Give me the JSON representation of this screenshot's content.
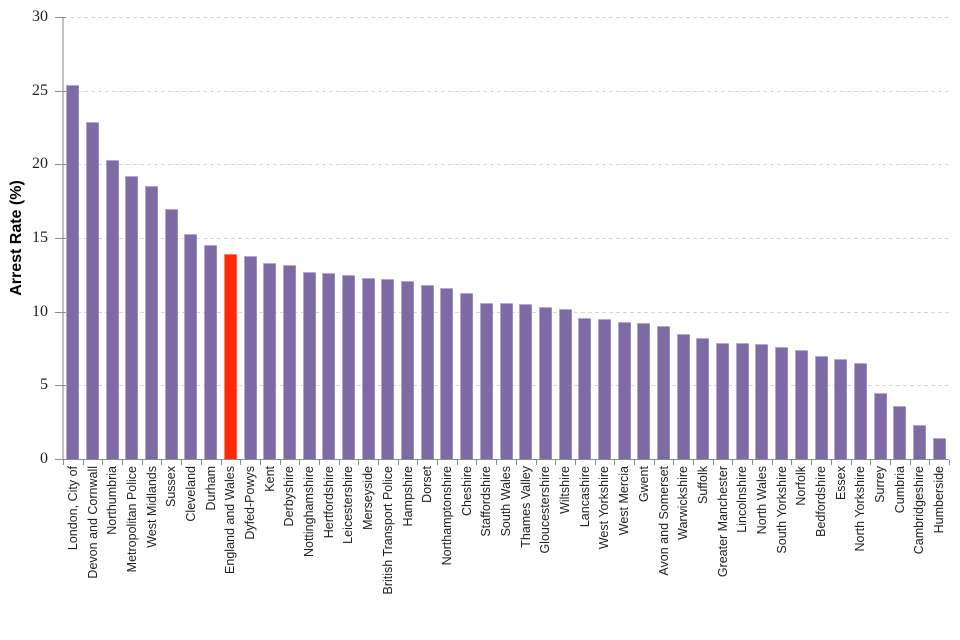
{
  "chart_data": {
    "type": "bar",
    "title": "",
    "ylabel": "Arrest Rate (%)",
    "xlabel": "",
    "ylim": [
      0,
      30
    ],
    "yticks": [
      0,
      5,
      10,
      15,
      20,
      25,
      30
    ],
    "grid": "horizontal-dashed",
    "legend_position": "none",
    "highlight_category": "England and Wales",
    "categories": [
      "London, City of",
      "Devon and Cornwall",
      "Northumbria",
      "Metropolitan Police",
      "West Midlands",
      "Sussex",
      "Cleveland",
      "Durham",
      "England and Wales",
      "Dyfed-Powys",
      "Kent",
      "Derbyshire",
      "Nottinghamshire",
      "Hertfordshire",
      "Leicestershire",
      "Merseyside",
      "British Transport Police",
      "Hampshire",
      "Dorset",
      "Northamptonshire",
      "Cheshire",
      "Staffordshire",
      "South Wales",
      "Thames Valley",
      "Gloucestershire",
      "Wiltshire",
      "Lancashire",
      "West Yorkshire",
      "West Mercia",
      "Gwent",
      "Avon and Somerset",
      "Warwickshire",
      "Suffolk",
      "Greater Manchester",
      "Lincolnshire",
      "North Wales",
      "South Yorkshire",
      "Norfolk",
      "Bedfordshire",
      "Essex",
      "North Yorkshire",
      "Surrey",
      "Cumbria",
      "Cambridgeshire",
      "Humberside"
    ],
    "values": [
      25.4,
      22.9,
      20.3,
      19.2,
      18.5,
      17.0,
      15.3,
      14.5,
      13.9,
      13.8,
      13.3,
      13.2,
      12.7,
      12.6,
      12.5,
      12.3,
      12.2,
      12.1,
      11.8,
      11.6,
      11.3,
      10.6,
      10.6,
      10.5,
      10.3,
      10.2,
      9.6,
      9.5,
      9.3,
      9.2,
      9.0,
      8.5,
      8.2,
      7.9,
      7.9,
      7.8,
      7.6,
      7.4,
      7.0,
      6.8,
      6.5,
      4.5,
      3.6,
      2.3,
      1.4
    ],
    "colors": {
      "bar": "#7E6BA5",
      "bar_highlight": "#FF2A05",
      "gridline": "#D6D6D6",
      "axis_line": "#8C8C8C",
      "y_axis_line": "#C3C3C3",
      "text": "#1F1F1F"
    }
  }
}
